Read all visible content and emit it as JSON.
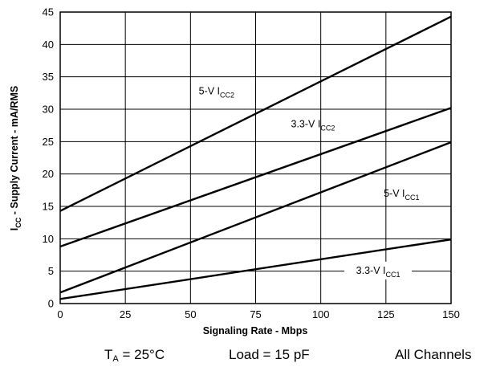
{
  "chart_data": {
    "type": "line",
    "xlabel": "Signaling Rate - Mbps",
    "ylabel_main": "I",
    "ylabel_sub": "CC",
    "ylabel_rest": " - Supply Current - mA/RMS",
    "xlim": [
      0,
      150
    ],
    "ylim": [
      0,
      45
    ],
    "xticks": [
      0,
      25,
      50,
      75,
      100,
      125,
      150
    ],
    "yticks": [
      0,
      5,
      10,
      15,
      20,
      25,
      30,
      35,
      40,
      45
    ],
    "grid": true,
    "series": [
      {
        "label_main": "5-V I",
        "label_sub": "CC2",
        "x": [
          0,
          150
        ],
        "y": [
          14.3,
          44.3
        ]
      },
      {
        "label_main": "3.3-V I",
        "label_sub": "CC2",
        "x": [
          0,
          150
        ],
        "y": [
          8.8,
          30.2
        ]
      },
      {
        "label_main": "5-V I",
        "label_sub": "CC1",
        "x": [
          0,
          150
        ],
        "y": [
          1.7,
          24.9
        ]
      },
      {
        "label_main": "3.3-V I",
        "label_sub": "CC1",
        "x": [
          0,
          150
        ],
        "y": [
          0.7,
          9.9
        ]
      }
    ]
  },
  "conditions": {
    "ta_main": "T",
    "ta_sub": "A",
    "ta_rest": " = 25°C",
    "load": "Load = 15 pF",
    "channels": "All Channels"
  }
}
